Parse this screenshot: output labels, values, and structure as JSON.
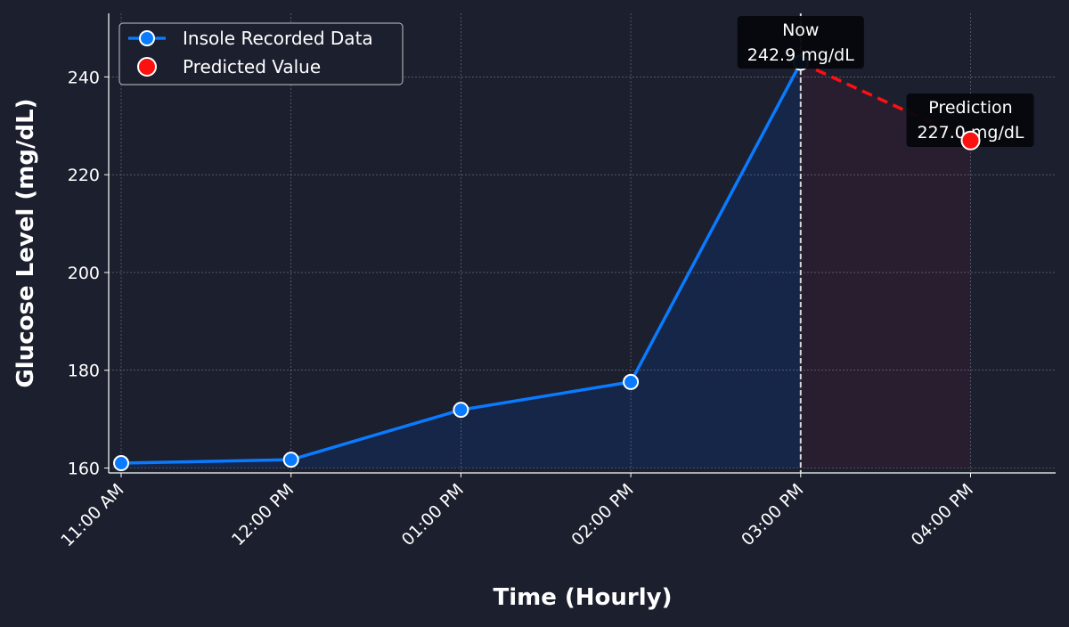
{
  "chart_data": {
    "type": "line",
    "title": "",
    "xlabel": "Time (Hourly)",
    "ylabel": "Glucose Level (mg/dL)",
    "categories": [
      "11:00 AM",
      "12:00 PM",
      "01:00 PM",
      "02:00 PM",
      "03:00 PM",
      "04:00 PM"
    ],
    "ylim": [
      159,
      253
    ],
    "yticks": [
      160,
      180,
      200,
      220,
      240
    ],
    "grid": true,
    "legend_position": "top-left",
    "series": [
      {
        "name": "Insole Recorded Data",
        "x": [
          "11:00 AM",
          "12:00 PM",
          "01:00 PM",
          "02:00 PM",
          "03:00 PM"
        ],
        "values": [
          161.0,
          161.7,
          171.9,
          177.6,
          242.9
        ],
        "color": "#0a7bff"
      },
      {
        "name": "Predicted Value",
        "x": [
          "04:00 PM"
        ],
        "values": [
          227.0
        ],
        "color": "#ff1010"
      }
    ],
    "now_marker": {
      "x": "03:00 PM",
      "label": "Now",
      "value_label": "242.9 mg/dL"
    },
    "prediction_marker": {
      "x": "04:00 PM",
      "label": "Prediction",
      "value_label": "227.0 mg/dL"
    }
  },
  "colors": {
    "background": "#1b1f2e",
    "recorded_line": "#0a7bff",
    "predicted_point": "#ff1010",
    "predicted_line": "#ff1010",
    "recorded_fill": "#16274a",
    "predicted_fill": "#2a1f30",
    "grid": "#8a8f9e",
    "axis_text": "#ffffff",
    "now_line": "#d8d8d8",
    "annotation_bg": "#05070c"
  }
}
